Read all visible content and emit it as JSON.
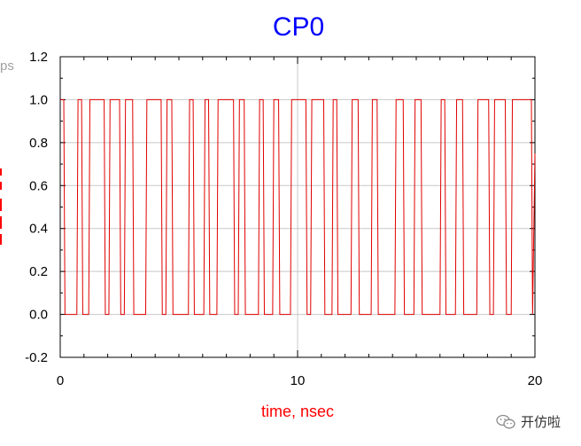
{
  "chart_data": {
    "type": "line",
    "title": "CP0",
    "xlabel": "time, nsec",
    "ylabel": "",
    "xlim": [
      0,
      20
    ],
    "ylim": [
      -0.2,
      1.2
    ],
    "xticks": [
      "0",
      "10",
      "20"
    ],
    "yticks": [
      "-0.2",
      "0.0",
      "0.2",
      "0.4",
      "0.6",
      "0.8",
      "1.0",
      "1.2"
    ],
    "grid": true,
    "series": [
      {
        "color": "#e00000",
        "x": [
          0,
          0.15,
          0.2,
          0.7,
          0.75,
          0.9,
          0.95,
          1.2,
          1.25,
          1.85,
          1.9,
          2.05,
          2.1,
          2.5,
          2.55,
          2.7,
          2.75,
          3.05,
          3.1,
          3.6,
          3.65,
          4.25,
          4.3,
          4.45,
          4.5,
          4.7,
          4.75,
          5.4,
          5.45,
          5.6,
          5.65,
          6.05,
          6.1,
          6.25,
          6.3,
          6.6,
          6.65,
          7.3,
          7.35,
          7.5,
          7.55,
          7.75,
          7.8,
          8.35,
          8.4,
          8.55,
          8.6,
          8.95,
          9.0,
          9.2,
          9.25,
          9.7,
          9.75,
          10.35,
          10.4,
          10.55,
          10.6,
          11.1,
          11.15,
          11.45,
          11.5,
          11.65,
          11.7,
          12.25,
          12.3,
          12.55,
          12.6,
          13.1,
          13.15,
          13.35,
          13.4,
          14.1,
          14.15,
          14.45,
          14.5,
          14.9,
          14.95,
          15.2,
          15.25,
          16.0,
          16.05,
          16.2,
          16.25,
          16.65,
          16.7,
          16.95,
          17.0,
          17.55,
          17.6,
          18.05,
          18.1,
          18.25,
          18.3,
          18.75,
          18.8,
          19.0,
          19.05,
          19.85,
          19.9,
          20.0
        ],
        "y": [
          1,
          1,
          0,
          0,
          1,
          1,
          0,
          0,
          1,
          1,
          0,
          0,
          1,
          1,
          0,
          0,
          1,
          1,
          0,
          0,
          1,
          1,
          0,
          0,
          1,
          1,
          0,
          0,
          1,
          1,
          0,
          0,
          1,
          1,
          0,
          0,
          1,
          1,
          0,
          0,
          1,
          1,
          0,
          0,
          1,
          1,
          0,
          0,
          1,
          1,
          0,
          0,
          1,
          1,
          0,
          0,
          1,
          1,
          0,
          0,
          1,
          1,
          0,
          0,
          1,
          1,
          0,
          0,
          1,
          1,
          0,
          0,
          1,
          1,
          0,
          0,
          1,
          1,
          0,
          0,
          1,
          1,
          0,
          0,
          1,
          1,
          0,
          0,
          1,
          1,
          0,
          0,
          1,
          1,
          0,
          0,
          1,
          1,
          0,
          0.75
        ]
      }
    ]
  },
  "left_cut_text": "ps",
  "watermark": {
    "text": "开仿啦",
    "icon": "wechat-icon"
  }
}
